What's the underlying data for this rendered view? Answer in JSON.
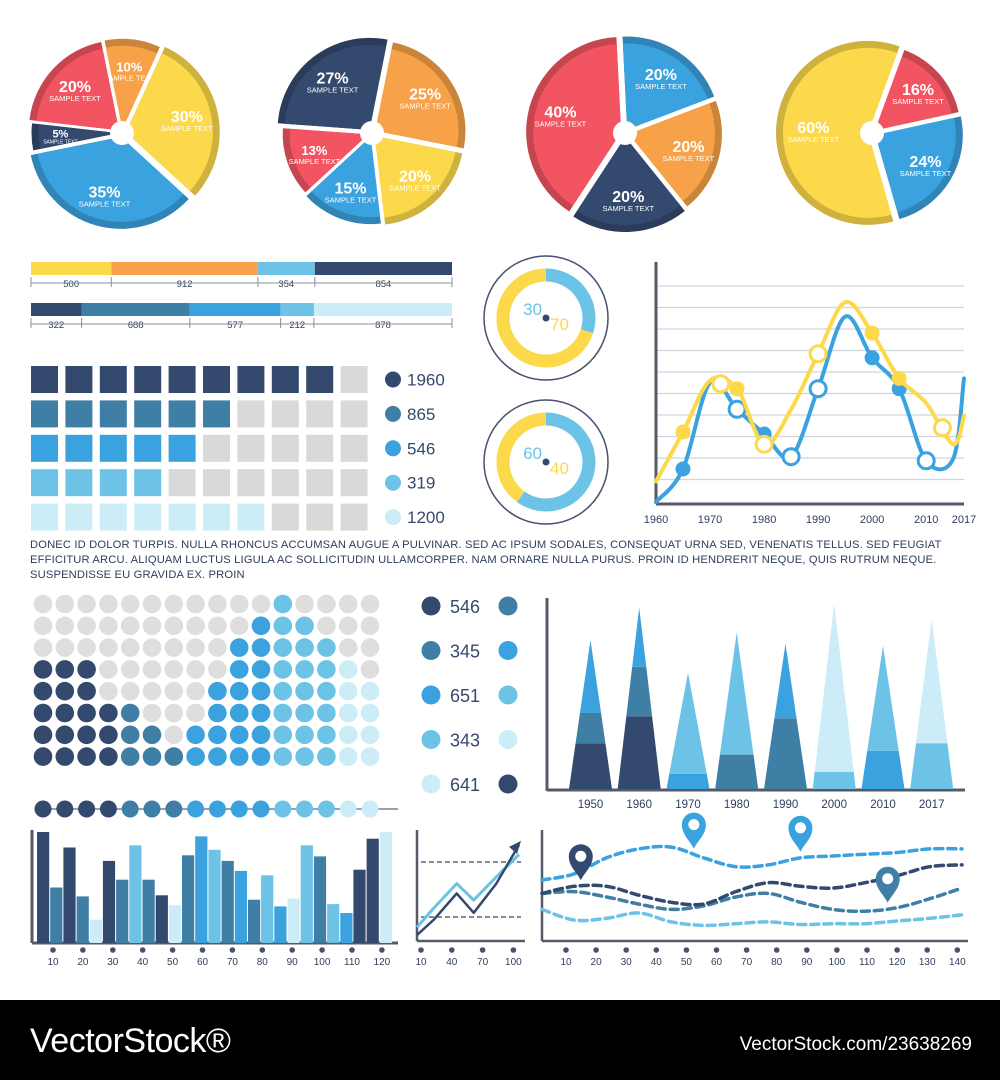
{
  "colors": {
    "navy": "#34496e",
    "steel": "#3f7fa6",
    "blue": "#3aa2de",
    "sky": "#6cc3e6",
    "pale": "#ccecf7",
    "red": "#f25561",
    "orange": "#f7a248",
    "yellow": "#fcd94b",
    "gray": "#d9d9d9",
    "axis": "#555a66"
  },
  "paragraph": "DONEC ID DOLOR TURPIS. NULLA RHONCUS ACCUMSAN AUGUE A PULVINAR. SED AC IPSUM SODALES, CONSEQUAT URNA SED, VENENATIS TELLUS. SED FEUGIAT EFFICITUR ARCU. ALIQUAM LUCTUS LIGULA AC SOLLICITUDIN ULLAMCORPER. NAM ORNARE NULLA PURUS. PROIN ID HENDRERIT NEQUE, QUIS RUTRUM NEQUE. SUSPENDISSE EU GRAVIDA EX. PROIN",
  "footer": {
    "brand": "VectorStock®",
    "image_id": "VectorStock.com/23638269"
  },
  "chart_data": [
    {
      "type": "pie",
      "id": "pie1",
      "slices": [
        {
          "value": 10,
          "label": "10%",
          "sub": "SAMPLE TEXT",
          "color": "orange"
        },
        {
          "value": 30,
          "label": "30%",
          "sub": "SAMPLE TEXT",
          "color": "yellow"
        },
        {
          "value": 35,
          "label": "35%",
          "sub": "SAMPLE TEXT",
          "color": "blue"
        },
        {
          "value": 5,
          "label": "5%",
          "sub": "SAMPLE TEXT",
          "color": "navy"
        },
        {
          "value": 20,
          "label": "20%",
          "sub": "SAMPLE TEXT",
          "color": "red"
        }
      ]
    },
    {
      "type": "pie",
      "id": "pie2",
      "slices": [
        {
          "value": 27,
          "label": "27%",
          "sub": "SAMPLE TEXT",
          "color": "navy"
        },
        {
          "value": 25,
          "label": "25%",
          "sub": "SAMPLE TEXT",
          "color": "orange"
        },
        {
          "value": 20,
          "label": "20%",
          "sub": "SAMPLE TEXT",
          "color": "yellow"
        },
        {
          "value": 15,
          "label": "15%",
          "sub": "SAMPLE TEXT",
          "color": "blue"
        },
        {
          "value": 13,
          "label": "13%",
          "sub": "SAMPLE TEXT",
          "color": "red"
        }
      ]
    },
    {
      "type": "pie",
      "id": "pie3",
      "slices": [
        {
          "value": 20,
          "label": "20%",
          "sub": "SAMPLE TEXT",
          "color": "blue"
        },
        {
          "value": 20,
          "label": "20%",
          "sub": "SAMPLE TEXT",
          "color": "orange"
        },
        {
          "value": 20,
          "label": "20%",
          "sub": "SAMPLE TEXT",
          "color": "navy"
        },
        {
          "value": 40,
          "label": "40%",
          "sub": "SAMPLE TEXT",
          "color": "red"
        }
      ]
    },
    {
      "type": "pie",
      "id": "pie4",
      "slices": [
        {
          "value": 16,
          "label": "16%",
          "sub": "SAMPLE TEXT",
          "color": "red"
        },
        {
          "value": 24,
          "label": "24%",
          "sub": "SAMPLE TEXT",
          "color": "blue"
        },
        {
          "value": 60,
          "label": "60%",
          "sub": "SAMPLE TEXT",
          "color": "yellow"
        }
      ]
    },
    {
      "type": "bar",
      "id": "segbar1",
      "orientation": "stacked-horizontal",
      "segments": [
        {
          "value": 500,
          "label": "500",
          "color": "yellow"
        },
        {
          "value": 912,
          "label": "912",
          "color": "orange"
        },
        {
          "value": 354,
          "label": "354",
          "color": "sky"
        },
        {
          "value": 854,
          "label": "854",
          "color": "navy"
        }
      ]
    },
    {
      "type": "bar",
      "id": "segbar2",
      "orientation": "stacked-horizontal",
      "segments": [
        {
          "value": 322,
          "label": "322",
          "color": "navy"
        },
        {
          "value": 688,
          "label": "688",
          "color": "steel"
        },
        {
          "value": 577,
          "label": "577",
          "color": "blue"
        },
        {
          "value": 212,
          "label": "212",
          "color": "sky"
        },
        {
          "value": 878,
          "label": "878",
          "color": "pale"
        }
      ]
    },
    {
      "type": "table",
      "id": "square-waffle",
      "columns": 10,
      "rows": [
        {
          "filled": 9,
          "label": "1960",
          "color": "navy"
        },
        {
          "filled": 6,
          "label": "865",
          "color": "steel"
        },
        {
          "filled": 5,
          "label": "546",
          "color": "blue"
        },
        {
          "filled": 4,
          "label": "319",
          "color": "sky"
        },
        {
          "filled": 7,
          "label": "1200",
          "color": "pale"
        }
      ]
    },
    {
      "type": "pie",
      "id": "donut1",
      "slices": [
        {
          "value": 30,
          "label": "30",
          "color": "sky"
        },
        {
          "value": 70,
          "label": "70",
          "color": "yellow"
        }
      ]
    },
    {
      "type": "pie",
      "id": "donut2",
      "slices": [
        {
          "value": 60,
          "label": "60",
          "color": "sky"
        },
        {
          "value": 40,
          "label": "40",
          "color": "yellow"
        }
      ]
    },
    {
      "type": "line",
      "id": "line-chart",
      "x": [
        1960,
        1965,
        1970,
        1975,
        1980,
        1985,
        1990,
        1995,
        2000,
        2005,
        2010,
        2015,
        2017
      ],
      "xticks": [
        "1960",
        "1970",
        "1980",
        "1990",
        "2000",
        "2010",
        "2017"
      ],
      "ylim": [
        0,
        10
      ],
      "grid": true,
      "series": [
        {
          "name": "blue",
          "color": "blue",
          "values": [
            0,
            1.6,
            5.8,
            4.5,
            3.3,
            2.2,
            5.5,
            9.0,
            7.0,
            5.5,
            2.0,
            2.1,
            6.0
          ],
          "markers": [
            1965,
            1975,
            1980,
            1985,
            1990,
            2000,
            2005,
            2010
          ]
        },
        {
          "name": "yellow",
          "color": "yellow",
          "values": [
            1.0,
            3.4,
            5.9,
            5.5,
            2.8,
            4.5,
            7.2,
            9.7,
            8.2,
            6.0,
            4.8,
            2.8,
            4.2
          ],
          "markers": [
            1965,
            1972,
            1975,
            1980,
            1990,
            2000,
            2005,
            2013
          ]
        }
      ]
    },
    {
      "type": "scatter",
      "id": "dot-matrix",
      "columns": 16,
      "rows": 8,
      "column_heights": [
        5,
        5,
        5,
        3,
        3,
        2,
        1,
        2,
        4,
        6,
        7,
        8,
        7,
        6,
        5,
        4
      ],
      "color_bands": [
        [
          "navy",
          4
        ],
        [
          "steel",
          7
        ],
        [
          "blue",
          11
        ],
        [
          "sky",
          14
        ],
        [
          "pale",
          16
        ]
      ],
      "progress_dots": 16
    },
    {
      "type": "table",
      "id": "dot-legend",
      "rows": [
        {
          "label": "546",
          "left": "navy",
          "right": "steel"
        },
        {
          "label": "345",
          "left": "steel",
          "right": "blue"
        },
        {
          "label": "651",
          "left": "blue",
          "right": "sky"
        },
        {
          "label": "343",
          "left": "sky",
          "right": "pale"
        },
        {
          "label": "641",
          "left": "pale",
          "right": "navy"
        }
      ]
    },
    {
      "type": "bar",
      "id": "triangle-chart",
      "categories": [
        "1950",
        "1960",
        "1970",
        "1980",
        "1990",
        "2000",
        "2010",
        "2017"
      ],
      "values": [
        78,
        95,
        61,
        82,
        76,
        97,
        75,
        89
      ],
      "ylim": [
        0,
        100
      ],
      "bands": [
        [
          [
            "navy",
            24
          ],
          [
            "steel",
            40
          ],
          [
            "blue",
            78
          ]
        ],
        [
          [
            "navy",
            38
          ],
          [
            "steel",
            64
          ],
          [
            "blue",
            95
          ]
        ],
        [
          [
            "blue",
            8
          ],
          [
            "sky",
            61
          ]
        ],
        [
          [
            "steel",
            18
          ],
          [
            "sky",
            82
          ]
        ],
        [
          [
            "steel",
            37
          ],
          [
            "blue",
            76
          ]
        ],
        [
          [
            "sky",
            9
          ],
          [
            "pale",
            97
          ]
        ],
        [
          [
            "blue",
            20
          ],
          [
            "sky",
            75
          ]
        ],
        [
          [
            "sky",
            24
          ],
          [
            "pale",
            89
          ]
        ]
      ]
    },
    {
      "type": "bar",
      "id": "histogram",
      "xticks": [
        "10",
        "20",
        "30",
        "40",
        "50",
        "60",
        "70",
        "80",
        "90",
        "100",
        "110",
        "120"
      ],
      "ylim": [
        0,
        100
      ],
      "values": [
        100,
        50,
        86,
        42,
        21,
        74,
        57,
        88,
        57,
        43,
        34,
        79,
        96,
        84,
        74,
        65,
        39,
        61,
        33,
        40,
        88,
        78,
        35,
        27,
        66,
        94,
        100
      ],
      "colors": [
        "navy",
        "steel",
        "navy",
        "steel",
        "pale",
        "navy",
        "steel",
        "sky",
        "steel",
        "navy",
        "pale",
        "steel",
        "blue",
        "sky",
        "steel",
        "blue",
        "steel",
        "sky",
        "blue",
        "pale",
        "sky",
        "steel",
        "sky",
        "blue",
        "navy",
        "navy",
        "pale"
      ]
    },
    {
      "type": "line",
      "id": "small-trend",
      "x": [
        10,
        25,
        45,
        60,
        80,
        100
      ],
      "xticks": [
        "10",
        "40",
        "70",
        "100"
      ],
      "series": [
        {
          "name": "light",
          "color": "sky",
          "values": [
            10,
            30,
            55,
            38,
            62,
            85
          ]
        },
        {
          "name": "dark",
          "color": "navy",
          "values": [
            2,
            18,
            45,
            25,
            55,
            95
          ]
        }
      ]
    },
    {
      "type": "line",
      "id": "dashed-routes",
      "x": [
        10,
        20,
        30,
        40,
        50,
        60,
        70,
        80,
        90,
        100,
        110,
        120,
        130,
        140
      ],
      "xticks": [
        "10",
        "20",
        "30",
        "40",
        "50",
        "60",
        "70",
        "80",
        "90",
        "100",
        "110",
        "120",
        "130",
        "140"
      ],
      "ylim": [
        0,
        100
      ],
      "series": [
        {
          "name": "pale",
          "color": "sky",
          "values": [
            22,
            10,
            12,
            18,
            8,
            4,
            6,
            8,
            5,
            6,
            6,
            9,
            12,
            16
          ]
        },
        {
          "name": "navy",
          "color": "navy",
          "values": [
            40,
            48,
            48,
            38,
            30,
            28,
            42,
            52,
            48,
            46,
            52,
            60,
            70,
            72
          ]
        },
        {
          "name": "steel",
          "color": "steel",
          "values": [
            40,
            42,
            36,
            28,
            22,
            26,
            36,
            40,
            30,
            22,
            20,
            24,
            34,
            46
          ]
        },
        {
          "name": "blue",
          "color": "blue",
          "values": [
            55,
            62,
            80,
            90,
            92,
            80,
            70,
            72,
            80,
            82,
            84,
            86,
            90,
            90
          ]
        }
      ],
      "pins": [
        {
          "x": 22,
          "color": "navy"
        },
        {
          "x": 57,
          "color": "blue"
        },
        {
          "x": 90,
          "color": "blue"
        },
        {
          "x": 117,
          "color": "steel"
        }
      ]
    }
  ]
}
